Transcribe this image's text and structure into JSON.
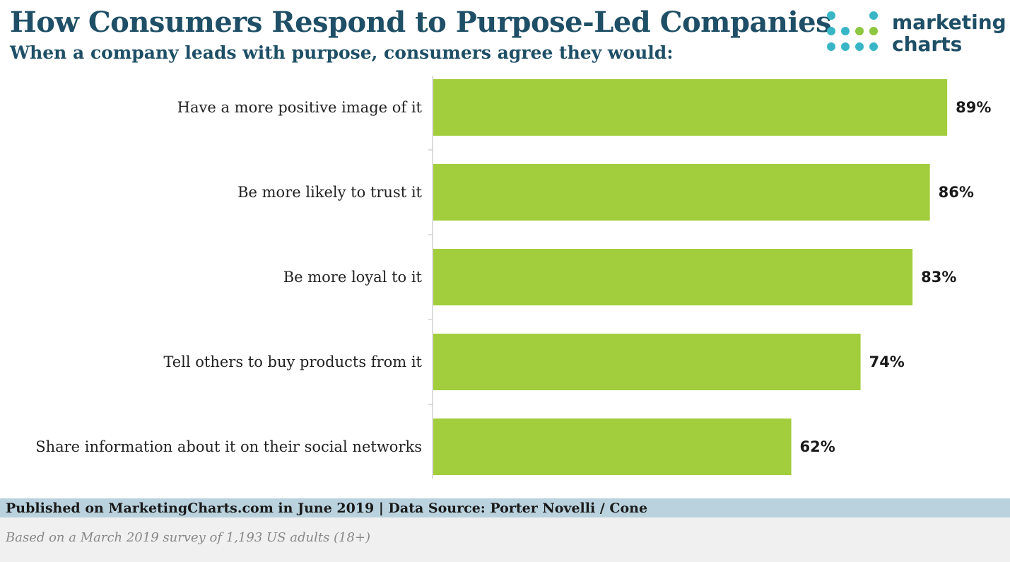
{
  "header": {
    "title": "How Consumers Respond to Purpose-Led Companies",
    "subtitle": "When a company leads with purpose, consumers agree they would:"
  },
  "logo": {
    "line1": "marketing",
    "line2": "charts",
    "colors": {
      "teal": "#38b6c6",
      "green": "#8dc63f"
    }
  },
  "chart_data": {
    "type": "bar",
    "orientation": "horizontal",
    "categories": [
      "Have a more positive image of it",
      "Be more likely to trust it",
      "Be more loyal to it",
      "Tell others to buy products from it",
      "Share information about it on their social networks"
    ],
    "values": [
      89,
      86,
      83,
      74,
      62
    ],
    "value_labels": [
      "89%",
      "86%",
      "83%",
      "74%",
      "62%"
    ],
    "title": "How Consumers Respond to Purpose-Led Companies",
    "subtitle": "When a company leads with purpose, consumers agree they would:",
    "xlim": [
      0,
      100
    ],
    "grid": false,
    "bar_color": "#a2cd3c",
    "unit": "%"
  },
  "footer": {
    "published": "Published on MarketingCharts.com in June 2019 | Data Source: Porter Novelli / Cone",
    "note": "Based on a March 2019 survey of 1,193 US adults (18+)"
  }
}
